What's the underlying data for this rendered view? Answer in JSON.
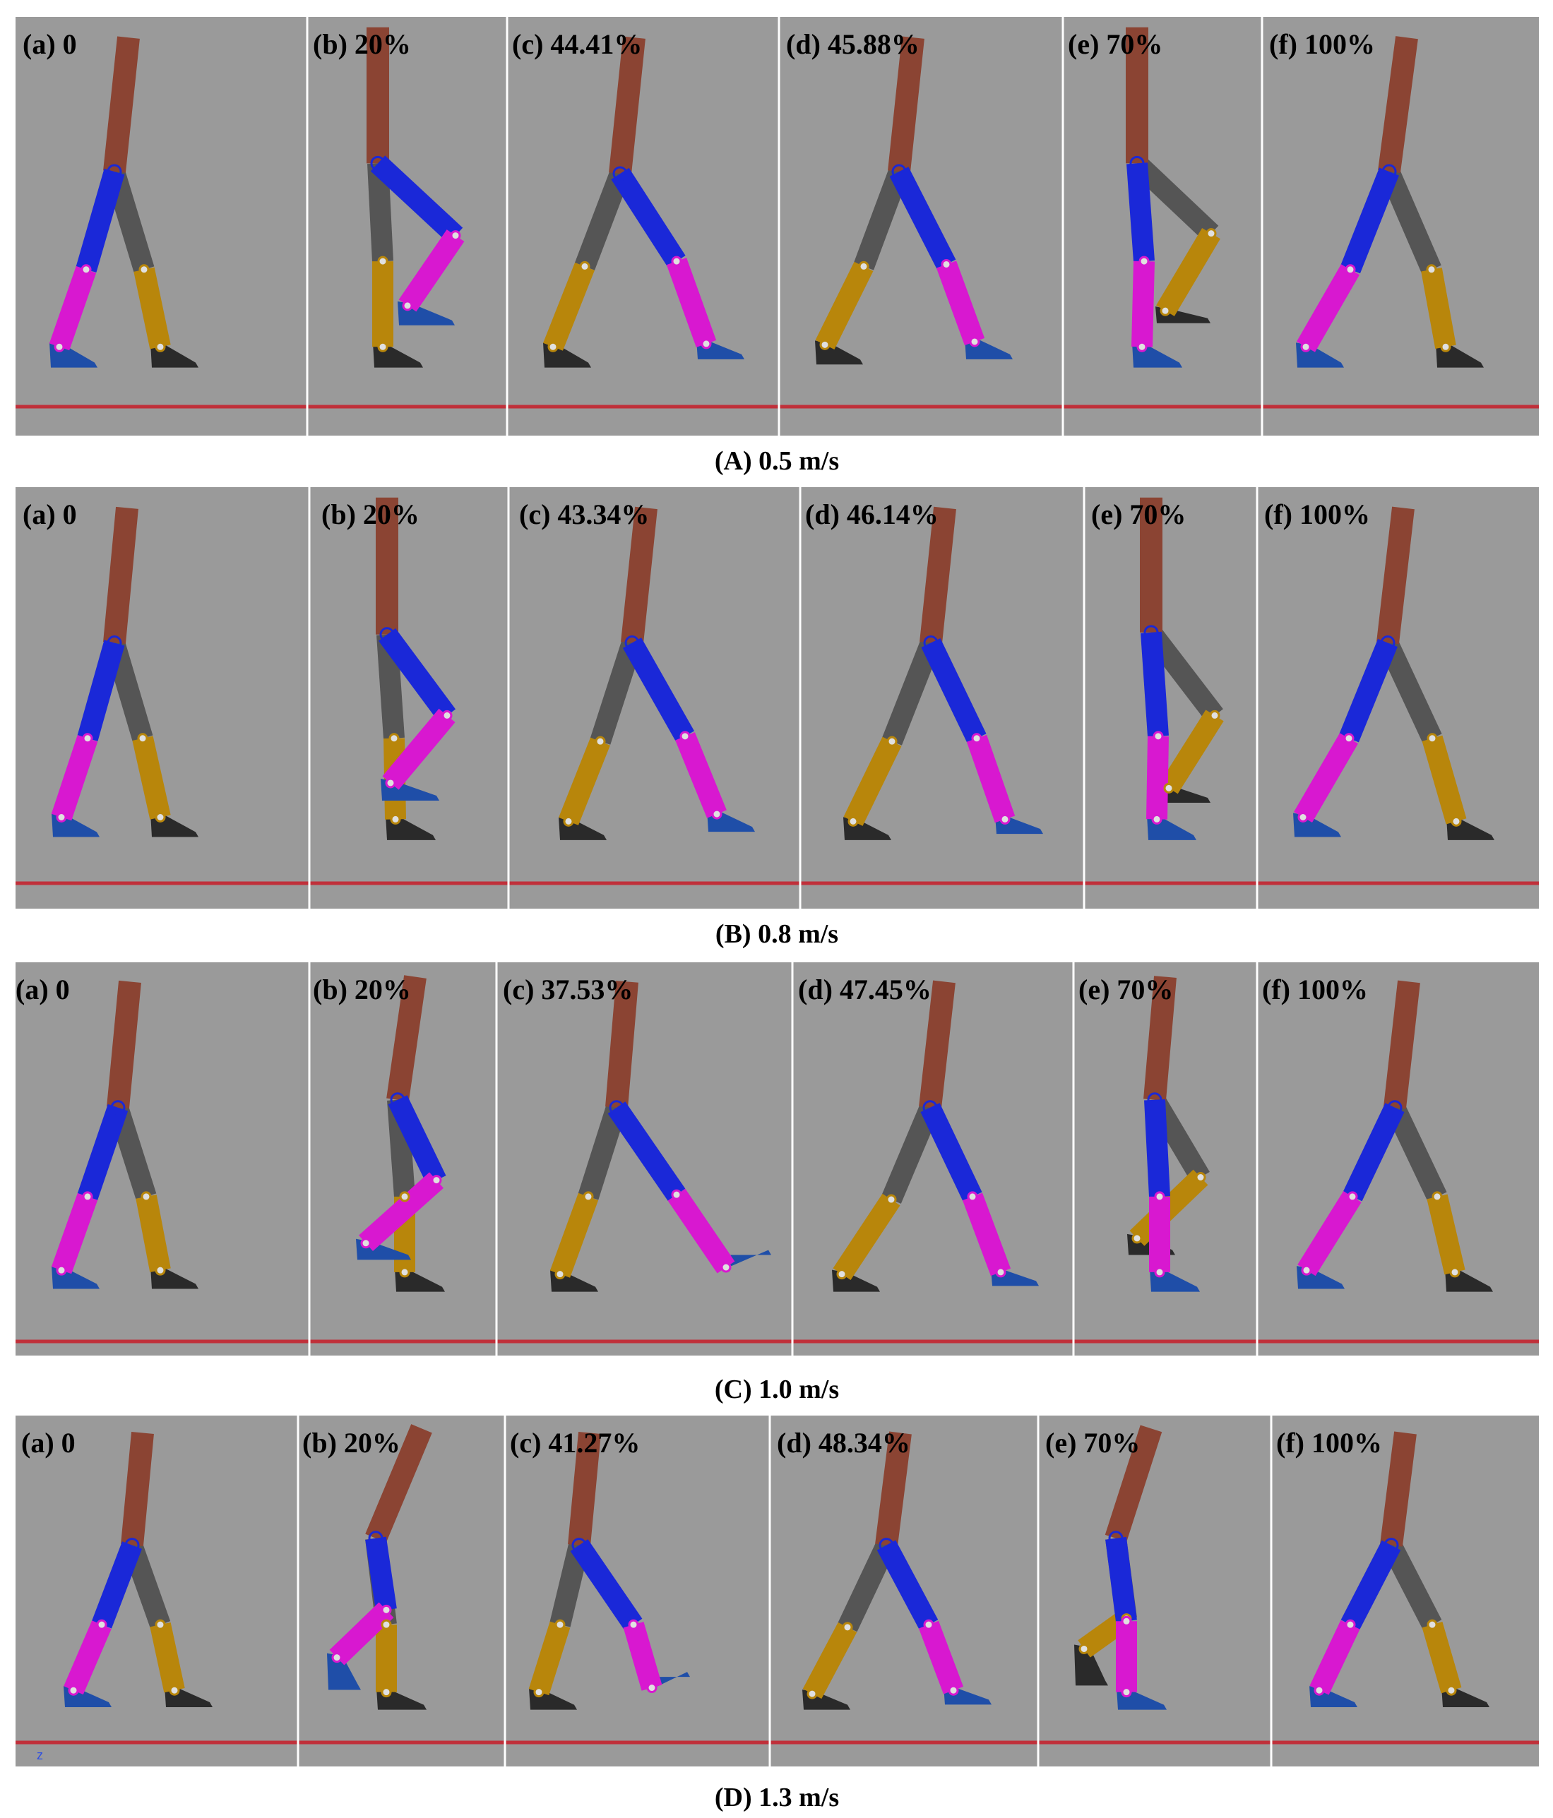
{
  "figure": {
    "colors": {
      "background": "#9a9a9a",
      "ground": "#c0303a",
      "trunk": "#8b4433",
      "right_thigh": "#1a28d8",
      "right_shank": "#d818d0",
      "right_foot": "#1f4ea8",
      "left_thigh": "#555555",
      "left_shank": "#b8860b",
      "left_foot": "#2a2a2a",
      "hip_joint": "#1a28d8",
      "knee_joint": "#e0e0e0",
      "separator": "#ffffff"
    },
    "z_axis_label": "z",
    "rows": [
      {
        "caption": "(A)  0.5 m/s",
        "frames": [
          {
            "label": "(a) 0",
            "pose": {
              "hip": [
                140,
                170
              ],
              "trunk_top": [
                160,
                40
              ],
              "right_knee": [
                100,
                265
              ],
              "right_ankle": [
                62,
                340
              ],
              "right_toe": [
                112,
                358
              ],
              "left_knee": [
                182,
                265
              ],
              "left_ankle": [
                205,
                340
              ],
              "left_toe": [
                255,
                358
              ]
            }
          },
          {
            "label": "(b) 20%",
            "pose": {
              "hip": [
                100,
                162
              ],
              "trunk_top": [
                100,
                30
              ],
              "right_knee": [
                210,
                232
              ],
              "right_ankle": [
                142,
                300
              ],
              "right_toe": [
                205,
                317
              ],
              "left_knee": [
                107,
                257
              ],
              "left_ankle": [
                107,
                340
              ],
              "left_toe": [
                160,
                358
              ]
            }
          },
          {
            "label": "(c) 44.41%",
            "pose": {
              "hip": [
                160,
                172
              ],
              "trunk_top": [
                180,
                40
              ],
              "right_knee": [
                240,
                257
              ],
              "right_ankle": [
                282,
                337
              ],
              "right_toe": [
                332,
                350
              ],
              "left_knee": [
                110,
                262
              ],
              "left_ankle": [
                65,
                340
              ],
              "left_toe": [
                115,
                358
              ]
            }
          },
          {
            "label": "(d) 45.88%",
            "pose": {
              "hip": [
                170,
                170
              ],
              "trunk_top": [
                190,
                40
              ],
              "right_knee": [
                237,
                260
              ],
              "right_ankle": [
                277,
                335
              ],
              "right_toe": [
                327,
                350
              ],
              "left_knee": [
                120,
                262
              ],
              "left_ankle": [
                65,
                338
              ],
              "left_toe": [
                115,
                355
              ]
            }
          },
          {
            "label": "(e) 70%",
            "pose": {
              "hip": [
                105,
                162
              ],
              "trunk_top": [
                105,
                30
              ],
              "right_knee": [
                115,
                257
              ],
              "right_ankle": [
                112,
                340
              ],
              "right_toe": [
                165,
                358
              ],
              "left_knee": [
                210,
                230
              ],
              "left_ankle": [
                145,
                305
              ],
              "left_toe": [
                205,
                315
              ]
            }
          },
          {
            "label": "(f) 100%",
            "pose": {
              "hip": [
                180,
                170
              ],
              "trunk_top": [
                205,
                40
              ],
              "right_knee": [
                125,
                265
              ],
              "right_ankle": [
                62,
                340
              ],
              "right_toe": [
                112,
                358
              ],
              "left_knee": [
                240,
                265
              ],
              "left_ankle": [
                260,
                340
              ],
              "left_toe": [
                310,
                358
              ]
            }
          }
        ]
      },
      {
        "caption": "(B) 0.8 m/s",
        "frames": [
          {
            "label": "(a) 0",
            "pose": {
              "hip": [
                140,
                170
              ],
              "trunk_top": [
                158,
                40
              ],
              "right_knee": [
                102,
                262
              ],
              "right_ankle": [
                65,
                338
              ],
              "right_toe": [
                115,
                355
              ],
              "left_knee": [
                180,
                262
              ],
              "left_ankle": [
                205,
                338
              ],
              "left_toe": [
                255,
                355
              ]
            }
          },
          {
            "label": "(b) 20%",
            "pose": {
              "hip": [
                110,
                162
              ],
              "trunk_top": [
                110,
                30
              ],
              "right_knee": [
                195,
                240
              ],
              "right_ankle": [
                115,
                305
              ],
              "right_toe": [
                180,
                320
              ],
              "left_knee": [
                120,
                262
              ],
              "left_ankle": [
                122,
                340
              ],
              "left_toe": [
                175,
                358
              ]
            }
          },
          {
            "label": "(c) 43.34%",
            "pose": {
              "hip": [
                175,
                170
              ],
              "trunk_top": [
                195,
                40
              ],
              "right_knee": [
                250,
                260
              ],
              "right_ankle": [
                295,
                335
              ],
              "right_toe": [
                345,
                350
              ],
              "left_knee": [
                130,
                265
              ],
              "left_ankle": [
                85,
                342
              ],
              "left_toe": [
                135,
                358
              ]
            }
          },
          {
            "label": "(d) 46.14%",
            "pose": {
              "hip": [
                185,
                170
              ],
              "trunk_top": [
                205,
                40
              ],
              "right_knee": [
                250,
                262
              ],
              "right_ankle": [
                290,
                340
              ],
              "right_toe": [
                340,
                352
              ],
              "left_knee": [
                130,
                265
              ],
              "left_ankle": [
                75,
                342
              ],
              "left_toe": [
                125,
                358
              ]
            }
          },
          {
            "label": "(e) 70%",
            "pose": {
              "hip": [
                95,
                160
              ],
              "trunk_top": [
                95,
                30
              ],
              "right_knee": [
                105,
                260
              ],
              "right_ankle": [
                103,
                340
              ],
              "right_toe": [
                155,
                358
              ],
              "left_knee": [
                185,
                240
              ],
              "left_ankle": [
                120,
                310
              ],
              "left_toe": [
                175,
                322
              ]
            }
          },
          {
            "label": "(f) 100%",
            "pose": {
              "hip": [
                185,
                170
              ],
              "trunk_top": [
                207,
                40
              ],
              "right_knee": [
                130,
                262
              ],
              "right_ankle": [
                65,
                338
              ],
              "right_toe": [
                115,
                355
              ],
              "left_knee": [
                248,
                262
              ],
              "left_ankle": [
                282,
                342
              ],
              "left_toe": [
                332,
                358
              ]
            }
          }
        ]
      },
      {
        "caption": "(C)  1.0 m/s",
        "frames": [
          {
            "label": "(a) 0",
            "pose": {
              "hip": [
                145,
                170
              ],
              "trunk_top": [
                162,
                40
              ],
              "right_knee": [
                102,
                262
              ],
              "right_ankle": [
                65,
                338
              ],
              "right_toe": [
                115,
                355
              ],
              "left_knee": [
                185,
                262
              ],
              "left_ankle": [
                205,
                338
              ],
              "left_toe": [
                255,
                355
              ]
            }
          },
          {
            "label": "(b) 20%",
            "pose": {
              "hip": [
                125,
                162
              ],
              "trunk_top": [
                150,
                35
              ],
              "right_knee": [
                180,
                245
              ],
              "right_ankle": [
                80,
                310
              ],
              "right_toe": [
                140,
                325
              ],
              "left_knee": [
                135,
                262
              ],
              "left_ankle": [
                135,
                340
              ],
              "left_toe": [
                188,
                358
              ]
            }
          },
          {
            "label": "(c) 37.53%",
            "pose": {
              "hip": [
                170,
                170
              ],
              "trunk_top": [
                185,
                40
              ],
              "right_knee": [
                255,
                260
              ],
              "right_ankle": [
                325,
                335
              ],
              "right_toe": [
                385,
                320
              ],
              "left_knee": [
                130,
                262
              ],
              "left_ankle": [
                90,
                342
              ],
              "left_toe": [
                140,
                358
              ]
            }
          },
          {
            "label": "(d) 47.45%",
            "pose": {
              "hip": [
                195,
                170
              ],
              "trunk_top": [
                215,
                40
              ],
              "right_knee": [
                255,
                262
              ],
              "right_ankle": [
                295,
                340
              ],
              "right_toe": [
                345,
                352
              ],
              "left_knee": [
                140,
                265
              ],
              "left_ankle": [
                70,
                342
              ],
              "left_toe": [
                120,
                358
              ]
            }
          },
          {
            "label": "(e) 70%",
            "pose": {
              "hip": [
                115,
                162
              ],
              "trunk_top": [
                130,
                35
              ],
              "right_knee": [
                122,
                262
              ],
              "right_ankle": [
                122,
                340
              ],
              "right_toe": [
                175,
                358
              ],
              "left_knee": [
                180,
                242
              ],
              "left_ankle": [
                90,
                305
              ],
              "left_toe": [
                140,
                320
              ]
            }
          },
          {
            "label": "(f) 100%",
            "pose": {
              "hip": [
                195,
                170
              ],
              "trunk_top": [
                215,
                40
              ],
              "right_knee": [
                135,
                262
              ],
              "right_ankle": [
                70,
                338
              ],
              "right_toe": [
                120,
                355
              ],
              "left_knee": [
                255,
                262
              ],
              "left_ankle": [
                280,
                340
              ],
              "left_toe": [
                330,
                358
              ]
            }
          }
        ]
      },
      {
        "caption": "(D) 1.3 m/s",
        "frames": [
          {
            "label": "(a) 0",
            "pose": {
              "hip": [
                165,
                170
              ],
              "trunk_top": [
                180,
                40
              ],
              "right_knee": [
                122,
                262
              ],
              "right_ankle": [
                82,
                338
              ],
              "right_toe": [
                132,
                355
              ],
              "left_knee": [
                205,
                262
              ],
              "left_ankle": [
                225,
                338
              ],
              "left_toe": [
                275,
                355
              ]
            }
          },
          {
            "label": "(b) 20%",
            "pose": {
              "hip": [
                110,
                162
              ],
              "trunk_top": [
                175,
                35
              ],
              "right_knee": [
                125,
                245
              ],
              "right_ankle": [
                55,
                300
              ],
              "right_toe": [
                85,
                335
              ],
              "left_knee": [
                125,
                262
              ],
              "left_ankle": [
                125,
                340
              ],
              "left_toe": [
                178,
                358
              ]
            }
          },
          {
            "label": "(c) 41.27%",
            "pose": {
              "hip": [
                105,
                170
              ],
              "trunk_top": [
                120,
                40
              ],
              "right_knee": [
                182,
                262
              ],
              "right_ankle": [
                208,
                335
              ],
              "right_toe": [
                258,
                320
              ],
              "left_knee": [
                78,
                262
              ],
              "left_ankle": [
                48,
                340
              ],
              "left_toe": [
                98,
                358
              ]
            }
          },
          {
            "label": "(d) 48.34%",
            "pose": {
              "hip": [
                165,
                170
              ],
              "trunk_top": [
                185,
                40
              ],
              "right_knee": [
                225,
                262
              ],
              "right_ankle": [
                260,
                338
              ],
              "right_toe": [
                310,
                352
              ],
              "left_knee": [
                110,
                265
              ],
              "left_ankle": [
                60,
                342
              ],
              "left_toe": [
                110,
                358
              ]
            }
          },
          {
            "label": "(e) 70%",
            "pose": {
              "hip": [
                110,
                162
              ],
              "trunk_top": [
                160,
                35
              ],
              "right_knee": [
                125,
                258
              ],
              "right_ankle": [
                125,
                340
              ],
              "right_toe": [
                178,
                358
              ],
              "left_knee": [
                125,
                255
              ],
              "left_ankle": [
                65,
                290
              ],
              "left_toe": [
                95,
                330
              ]
            }
          },
          {
            "label": "(f) 100%",
            "pose": {
              "hip": [
                170,
                170
              ],
              "trunk_top": [
                190,
                40
              ],
              "right_knee": [
                112,
                262
              ],
              "right_ankle": [
                68,
                338
              ],
              "right_toe": [
                118,
                355
              ],
              "left_knee": [
                228,
                262
              ],
              "left_ankle": [
                255,
                338
              ],
              "left_toe": [
                305,
                355
              ]
            }
          }
        ]
      }
    ]
  }
}
